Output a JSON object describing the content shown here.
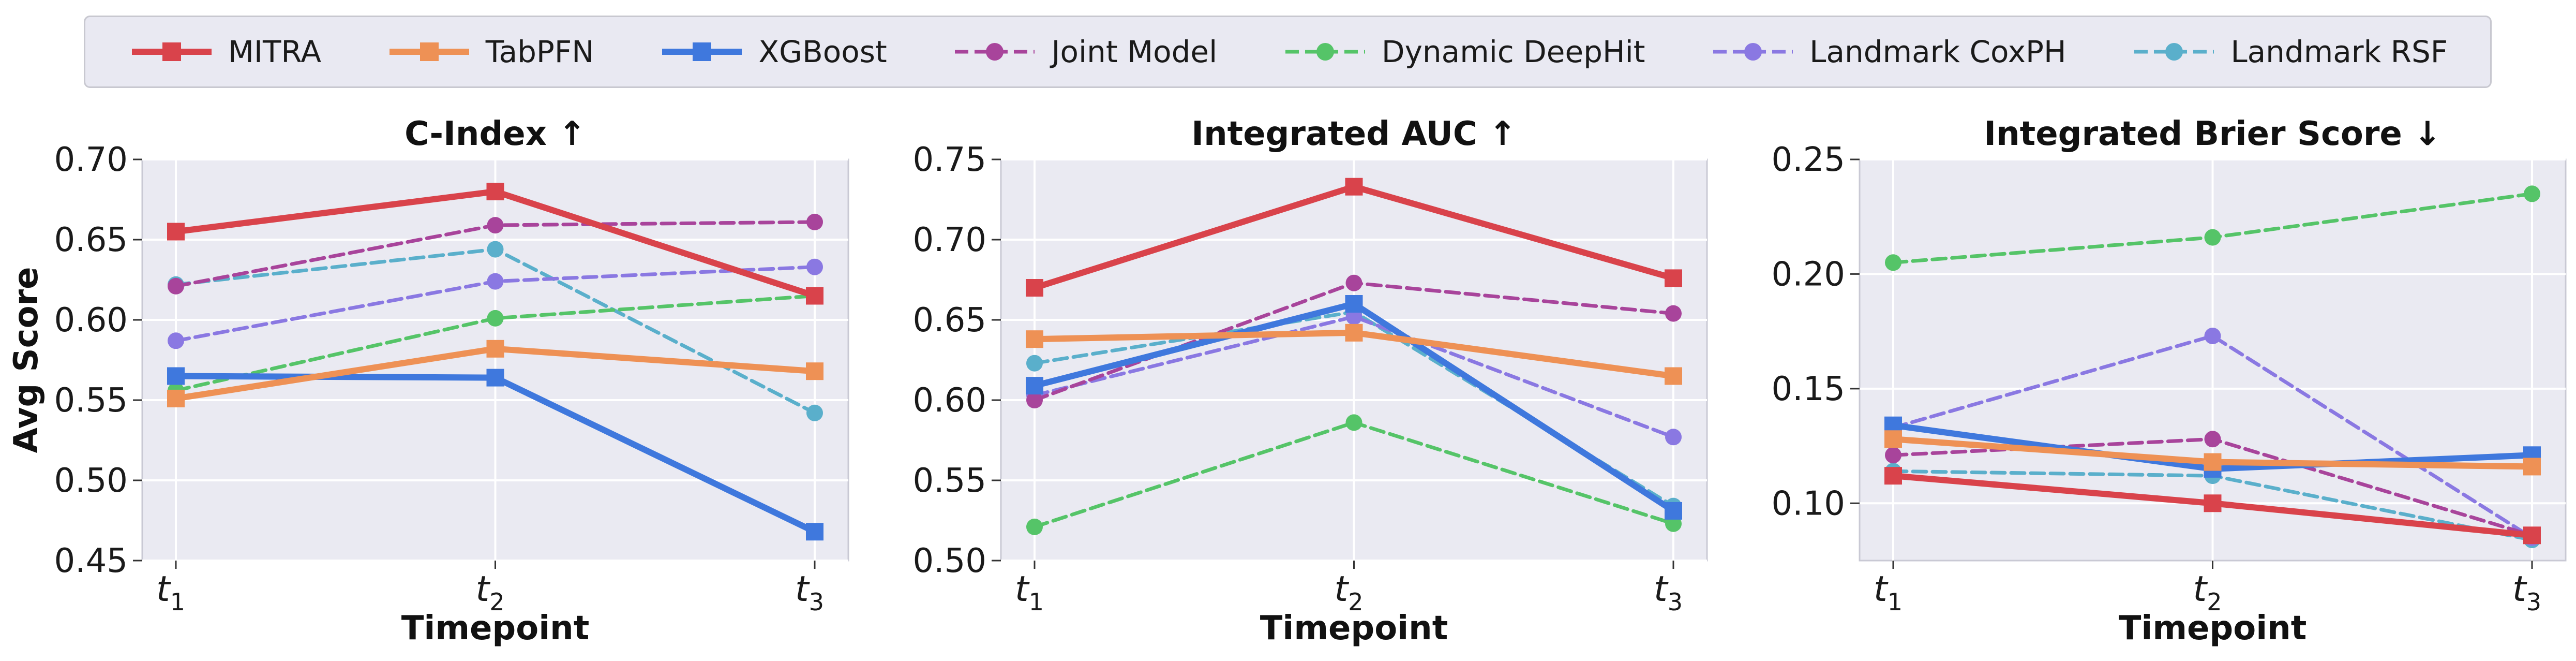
{
  "legend": [
    {
      "name": "MITRA",
      "color": "#d9434b",
      "dash": false,
      "marker": "square",
      "width": 12
    },
    {
      "name": "TabPFN",
      "color": "#ee9155",
      "dash": false,
      "marker": "square",
      "width": 12
    },
    {
      "name": "XGBoost",
      "color": "#3f78dd",
      "dash": false,
      "marker": "square",
      "width": 12
    },
    {
      "name": "Joint Model",
      "color": "#a8449b",
      "dash": true,
      "marker": "circle",
      "width": 7
    },
    {
      "name": "Dynamic DeepHit",
      "color": "#55c468",
      "dash": true,
      "marker": "circle",
      "width": 7
    },
    {
      "name": "Landmark CoxPH",
      "color": "#8a78e2",
      "dash": true,
      "marker": "circle",
      "width": 7
    },
    {
      "name": "Landmark RSF",
      "color": "#5aafcb",
      "dash": true,
      "marker": "circle",
      "width": 7
    }
  ],
  "shared": {
    "ylabel": "Avg Score",
    "xlabel": "Timepoint",
    "categories": [
      "t1",
      "t2",
      "t3"
    ]
  },
  "chart_data": [
    {
      "type": "line",
      "title": "C-Index ↑",
      "xlabel": "Timepoint",
      "ylabel": "Avg Score",
      "categories": [
        "t1",
        "t2",
        "t3"
      ],
      "ylim": [
        0.45,
        0.7
      ],
      "yticks": [
        "0.45",
        "0.50",
        "0.55",
        "0.60",
        "0.65",
        "0.70"
      ],
      "grid": true,
      "series": [
        {
          "name": "MITRA",
          "values": [
            0.655,
            0.68,
            0.615
          ]
        },
        {
          "name": "TabPFN",
          "values": [
            0.551,
            0.582,
            0.568
          ]
        },
        {
          "name": "XGBoost",
          "values": [
            0.565,
            0.564,
            0.468
          ]
        },
        {
          "name": "Joint Model",
          "values": [
            0.621,
            0.659,
            0.661
          ]
        },
        {
          "name": "Dynamic DeepHit",
          "values": [
            0.556,
            0.601,
            0.615
          ]
        },
        {
          "name": "Landmark CoxPH",
          "values": [
            0.587,
            0.624,
            0.633
          ]
        },
        {
          "name": "Landmark RSF",
          "values": [
            0.622,
            0.644,
            0.542
          ]
        }
      ]
    },
    {
      "type": "line",
      "title": "Integrated AUC ↑",
      "xlabel": "Timepoint",
      "ylabel": "",
      "categories": [
        "t1",
        "t2",
        "t3"
      ],
      "ylim": [
        0.5,
        0.75
      ],
      "yticks": [
        "0.50",
        "0.55",
        "0.60",
        "0.65",
        "0.70",
        "0.75"
      ],
      "grid": true,
      "series": [
        {
          "name": "MITRA",
          "values": [
            0.67,
            0.733,
            0.676
          ]
        },
        {
          "name": "TabPFN",
          "values": [
            0.638,
            0.642,
            0.615
          ]
        },
        {
          "name": "XGBoost",
          "values": [
            0.609,
            0.66,
            0.531
          ]
        },
        {
          "name": "Joint Model",
          "values": [
            0.6,
            0.673,
            0.654
          ]
        },
        {
          "name": "Dynamic DeepHit",
          "values": [
            0.521,
            0.586,
            0.523
          ]
        },
        {
          "name": "Landmark CoxPH",
          "values": [
            0.603,
            0.652,
            0.577
          ]
        },
        {
          "name": "Landmark RSF",
          "values": [
            0.623,
            0.655,
            0.534
          ]
        }
      ]
    },
    {
      "type": "line",
      "title": "Integrated Brier Score ↓",
      "xlabel": "Timepoint",
      "ylabel": "",
      "categories": [
        "t1",
        "t2",
        "t3"
      ],
      "ylim": [
        0.075,
        0.25
      ],
      "yticks": [
        "0.10",
        "0.15",
        "0.20",
        "0.25"
      ],
      "grid": true,
      "series": [
        {
          "name": "MITRA",
          "values": [
            0.112,
            0.1,
            0.086
          ]
        },
        {
          "name": "TabPFN",
          "values": [
            0.128,
            0.118,
            0.116
          ]
        },
        {
          "name": "XGBoost",
          "values": [
            0.134,
            0.115,
            0.121
          ]
        },
        {
          "name": "Joint Model",
          "values": [
            0.121,
            0.128,
            0.086
          ]
        },
        {
          "name": "Dynamic DeepHit",
          "values": [
            0.205,
            0.216,
            0.235
          ]
        },
        {
          "name": "Landmark CoxPH",
          "values": [
            0.133,
            0.173,
            0.085
          ]
        },
        {
          "name": "Landmark RSF",
          "values": [
            0.114,
            0.112,
            0.084
          ]
        }
      ]
    }
  ]
}
